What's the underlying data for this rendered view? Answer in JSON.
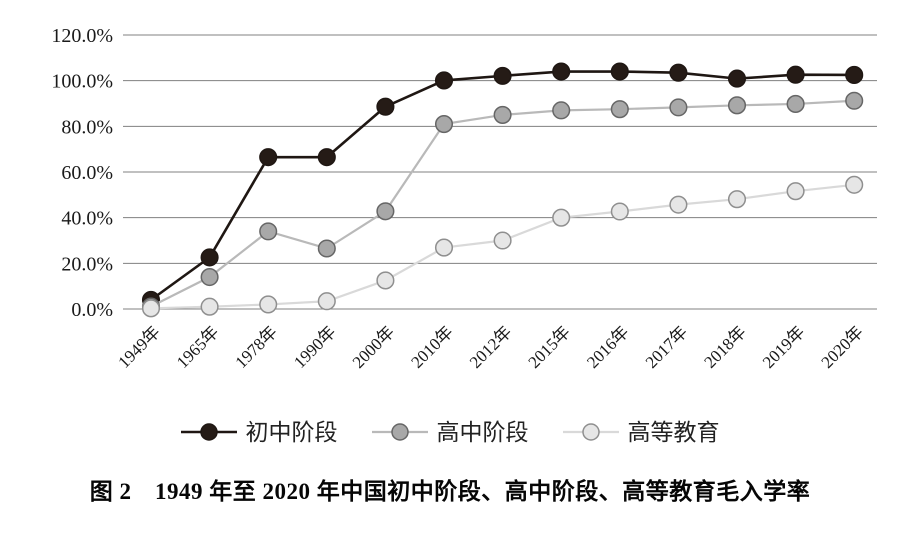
{
  "caption": "图 2　1949 年至 2020 年中国初中阶段、高中阶段、高等教育毛入学率",
  "chart_data": {
    "type": "line",
    "title": "",
    "xlabel": "",
    "ylabel": "",
    "categories": [
      "1949年",
      "1965年",
      "1978年",
      "1990年",
      "2000年",
      "2010年",
      "2012年",
      "2015年",
      "2016年",
      "2017年",
      "2018年",
      "2019年",
      "2020年"
    ],
    "series": [
      {
        "id": "junior-middle-school",
        "name": "初中阶段",
        "values": [
          4.0,
          22.6,
          66.5,
          66.5,
          88.6,
          100.1,
          102.1,
          104.0,
          104.0,
          103.5,
          100.9,
          102.6,
          102.5
        ],
        "line_color": "#1f1713",
        "marker_fill": "#251b16",
        "marker_stroke": "#1f1713",
        "line_width": 2.6
      },
      {
        "id": "senior-high-school",
        "name": "高中阶段",
        "values": [
          1.1,
          14.0,
          34.0,
          26.5,
          42.8,
          81.0,
          85.0,
          87.0,
          87.5,
          88.3,
          89.2,
          89.8,
          91.2
        ],
        "line_color": "#b9b9b9",
        "marker_fill": "#a8a8a8",
        "marker_stroke": "#666666",
        "line_width": 2.2
      },
      {
        "id": "higher-education",
        "name": "高等教育",
        "values": [
          0.3,
          1.0,
          2.0,
          3.4,
          12.5,
          26.9,
          30.0,
          40.0,
          42.7,
          45.7,
          48.1,
          51.6,
          54.4
        ],
        "line_color": "#d9d9d9",
        "marker_fill": "#e6e6e6",
        "marker_stroke": "#8f8f8f",
        "line_width": 2.2
      }
    ],
    "ylim": [
      0,
      120
    ],
    "y_tick_step": 20,
    "y_tick_suffix": "%",
    "y_tick_decimals": 1,
    "grid": true,
    "gridline_color": "#808080",
    "legend_position": "bottom"
  }
}
